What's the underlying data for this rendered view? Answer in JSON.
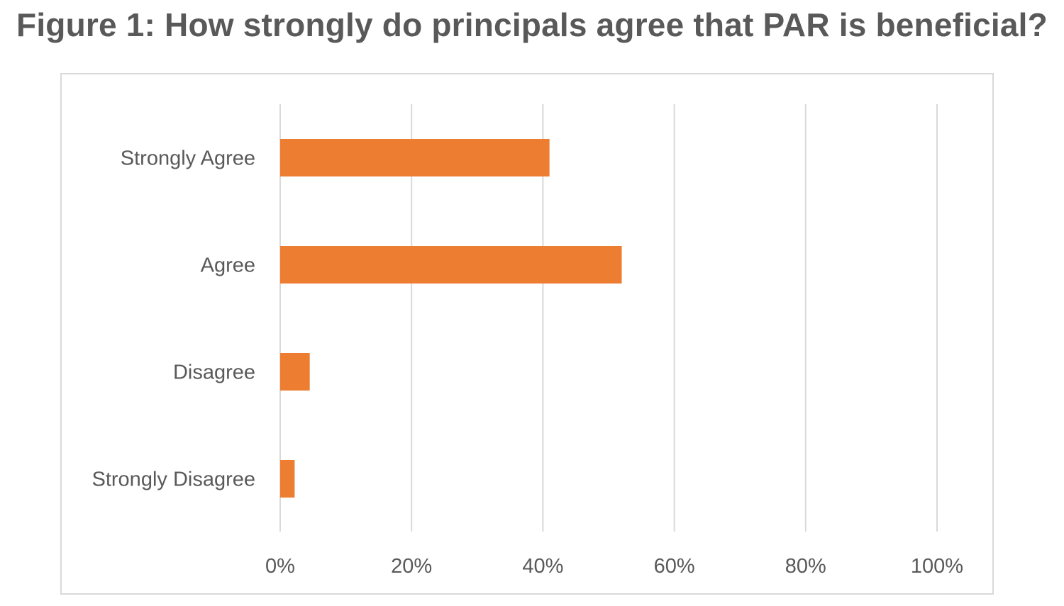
{
  "figure": {
    "title": "Figure 1: How strongly do principals agree that PAR is beneficial?"
  },
  "chart_data": {
    "type": "bar",
    "orientation": "horizontal",
    "title": "Figure 1: How strongly do principals agree that PAR is beneficial?",
    "categories": [
      "Strongly Agree",
      "Agree",
      "Disagree",
      "Strongly Disagree"
    ],
    "values": [
      0.41,
      0.52,
      0.045,
      0.022
    ],
    "xlim": [
      0,
      1
    ],
    "x_ticks": [
      0,
      0.2,
      0.4,
      0.6,
      0.8,
      1.0
    ],
    "x_tick_labels": [
      "0%",
      "20%",
      "40%",
      "60%",
      "80%",
      "100%"
    ],
    "xlabel": "",
    "ylabel": "",
    "grid": "vertical",
    "legend": "none",
    "bar_color": "#ed7d31",
    "grid_color": "#d9d9d9",
    "text_color": "#595959"
  }
}
